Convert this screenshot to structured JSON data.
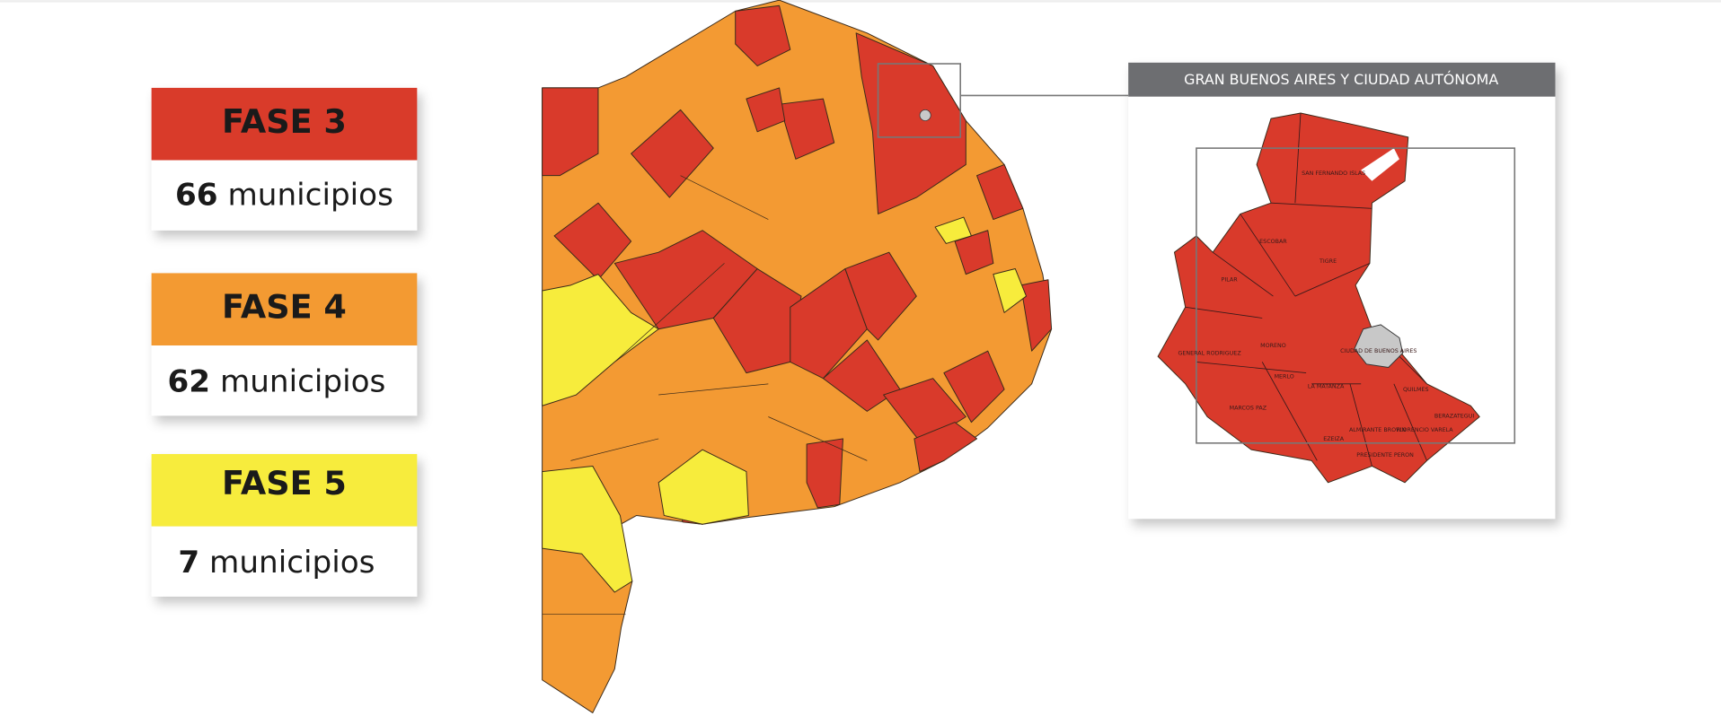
{
  "legend": [
    {
      "phase": "FASE 3",
      "count": "66",
      "unit": "municipios"
    },
    {
      "phase": "FASE 4",
      "count": "62",
      "unit": "municipios"
    },
    {
      "phase": "FASE 5",
      "count": "7",
      "unit": "municipios"
    }
  ],
  "inset": {
    "title": "GRAN BUENOS AIRES Y CIUDAD AUTÓNOMA",
    "labels": [
      "SAN FERNANDO ISLAS",
      "ESCOBAR",
      "TIGRE",
      "PILAR",
      "GENERAL RODRIGUEZ",
      "MORENO",
      "MERLO",
      "MARCOS PAZ",
      "LA MATANZA",
      "EZEIZA",
      "QUILMES",
      "BERAZATEGUI",
      "FLORENCIO VARELA",
      "PRESIDENTE PERON",
      "ALMIRANTE BROWN",
      "CIUDAD DE BUENOS AIRES"
    ]
  }
}
